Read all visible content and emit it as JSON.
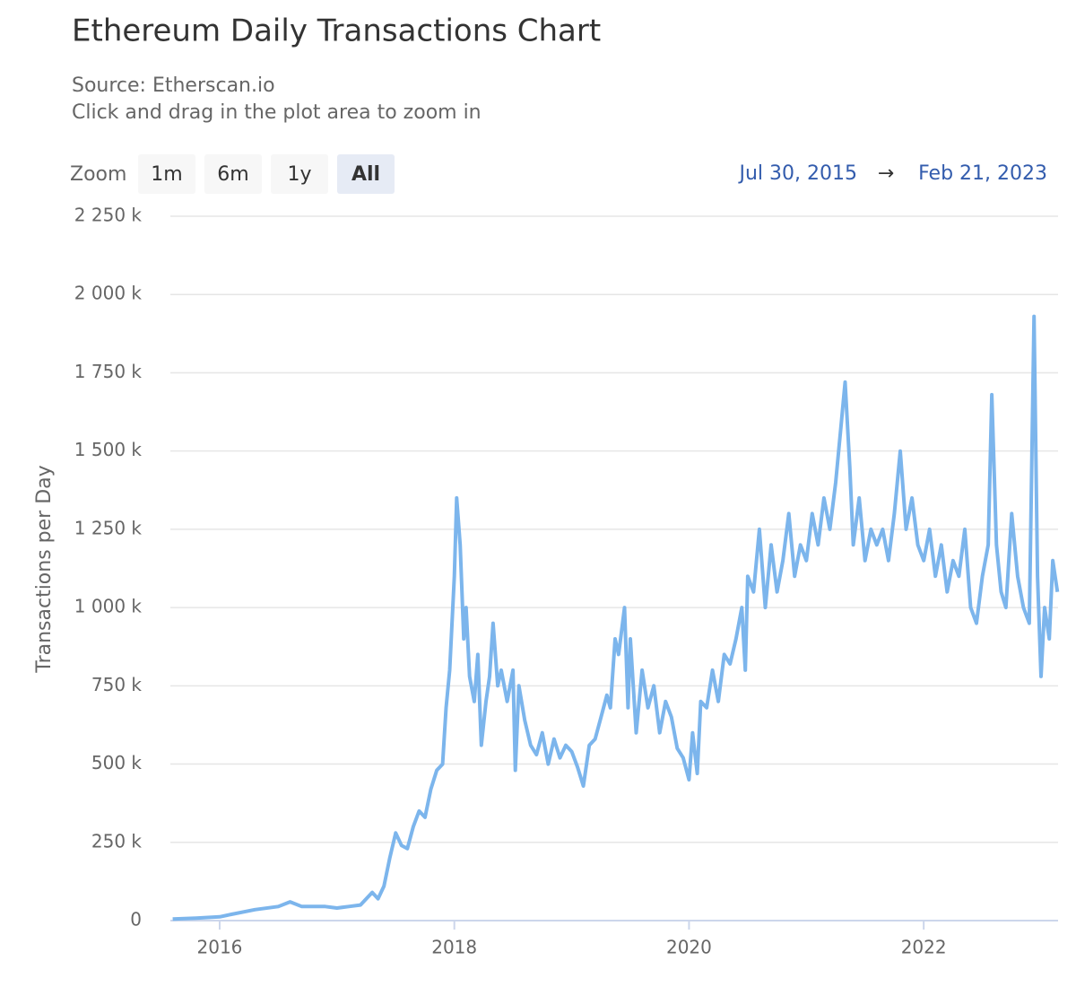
{
  "chart_data": {
    "type": "line",
    "title": "Ethereum Daily Transactions Chart",
    "subtitle": [
      "Source: Etherscan.io",
      "Click and drag in the plot area to zoom in"
    ],
    "range_selector": {
      "label": "Zoom",
      "buttons": [
        "1m",
        "6m",
        "1y",
        "All"
      ],
      "selected": 3
    },
    "date_range": {
      "from": "Jul 30, 2015",
      "arrow": "→",
      "to": "Feb 21, 2023"
    },
    "ylabel": "Transactions per Day",
    "color": "#7cb5ec",
    "grid": true,
    "xlim": [
      2015.58,
      2023.145
    ],
    "xticks": [
      2016,
      2018,
      2020,
      2022
    ],
    "ylim": [
      0,
      2250000
    ],
    "yticks": [
      0,
      {
        "value": 250000,
        "label": "250 k"
      },
      {
        "value": 500000,
        "label": "500 k"
      },
      {
        "value": 750000,
        "label": "750 k"
      },
      {
        "value": 1000000,
        "label": "1 000 k"
      },
      {
        "value": 1250000,
        "label": "1 250 k"
      },
      {
        "value": 1500000,
        "label": "1 500 k"
      },
      {
        "value": 1750000,
        "label": "1 750 k"
      },
      {
        "value": 2000000,
        "label": "2 000 k"
      },
      {
        "value": 2250000,
        "label": "2 250 k"
      }
    ],
    "x": [
      2015.6,
      2015.8,
      2016.0,
      2016.1,
      2016.3,
      2016.5,
      2016.6,
      2016.7,
      2016.9,
      2017.0,
      2017.1,
      2017.2,
      2017.3,
      2017.35,
      2017.4,
      2017.45,
      2017.5,
      2017.55,
      2017.6,
      2017.65,
      2017.7,
      2017.75,
      2017.8,
      2017.85,
      2017.9,
      2017.93,
      2017.96,
      2018.0,
      2018.02,
      2018.05,
      2018.08,
      2018.1,
      2018.13,
      2018.17,
      2018.2,
      2018.23,
      2018.27,
      2018.3,
      2018.33,
      2018.37,
      2018.4,
      2018.45,
      2018.5,
      2018.52,
      2018.55,
      2018.6,
      2018.65,
      2018.7,
      2018.75,
      2018.8,
      2018.85,
      2018.9,
      2018.95,
      2019.0,
      2019.05,
      2019.1,
      2019.15,
      2019.2,
      2019.25,
      2019.3,
      2019.33,
      2019.37,
      2019.4,
      2019.45,
      2019.48,
      2019.5,
      2019.55,
      2019.6,
      2019.65,
      2019.7,
      2019.75,
      2019.8,
      2019.85,
      2019.9,
      2019.95,
      2020.0,
      2020.03,
      2020.07,
      2020.1,
      2020.15,
      2020.2,
      2020.25,
      2020.3,
      2020.35,
      2020.4,
      2020.45,
      2020.48,
      2020.5,
      2020.55,
      2020.6,
      2020.65,
      2020.7,
      2020.75,
      2020.8,
      2020.85,
      2020.9,
      2020.95,
      2021.0,
      2021.05,
      2021.1,
      2021.15,
      2021.2,
      2021.25,
      2021.3,
      2021.33,
      2021.37,
      2021.4,
      2021.45,
      2021.5,
      2021.55,
      2021.6,
      2021.65,
      2021.7,
      2021.75,
      2021.8,
      2021.85,
      2021.9,
      2021.95,
      2022.0,
      2022.05,
      2022.1,
      2022.15,
      2022.2,
      2022.25,
      2022.3,
      2022.35,
      2022.4,
      2022.45,
      2022.5,
      2022.55,
      2022.58,
      2022.62,
      2022.66,
      2022.7,
      2022.75,
      2022.8,
      2022.85,
      2022.9,
      2022.94,
      2022.97,
      2023.0,
      2023.03,
      2023.07,
      2023.1,
      2023.14
    ],
    "values": [
      5000,
      8000,
      12000,
      20000,
      35000,
      45000,
      60000,
      45000,
      45000,
      40000,
      45000,
      50000,
      90000,
      70000,
      110000,
      200000,
      280000,
      240000,
      230000,
      300000,
      350000,
      330000,
      420000,
      480000,
      500000,
      680000,
      800000,
      1100000,
      1350000,
      1200000,
      900000,
      1000000,
      780000,
      700000,
      850000,
      560000,
      700000,
      780000,
      950000,
      750000,
      800000,
      700000,
      800000,
      480000,
      750000,
      640000,
      560000,
      530000,
      600000,
      500000,
      580000,
      520000,
      560000,
      540000,
      490000,
      430000,
      560000,
      580000,
      650000,
      720000,
      680000,
      900000,
      850000,
      1000000,
      680000,
      900000,
      600000,
      800000,
      680000,
      750000,
      600000,
      700000,
      650000,
      550000,
      520000,
      450000,
      600000,
      470000,
      700000,
      680000,
      800000,
      700000,
      850000,
      820000,
      900000,
      1000000,
      800000,
      1100000,
      1050000,
      1250000,
      1000000,
      1200000,
      1050000,
      1150000,
      1300000,
      1100000,
      1200000,
      1150000,
      1300000,
      1200000,
      1350000,
      1250000,
      1400000,
      1600000,
      1720000,
      1450000,
      1200000,
      1350000,
      1150000,
      1250000,
      1200000,
      1250000,
      1150000,
      1300000,
      1500000,
      1250000,
      1350000,
      1200000,
      1150000,
      1250000,
      1100000,
      1200000,
      1050000,
      1150000,
      1100000,
      1250000,
      1000000,
      950000,
      1100000,
      1200000,
      1680000,
      1200000,
      1050000,
      1000000,
      1300000,
      1100000,
      1000000,
      950000,
      1930000,
      1100000,
      780000,
      1000000,
      900000,
      1150000,
      1050000
    ]
  }
}
